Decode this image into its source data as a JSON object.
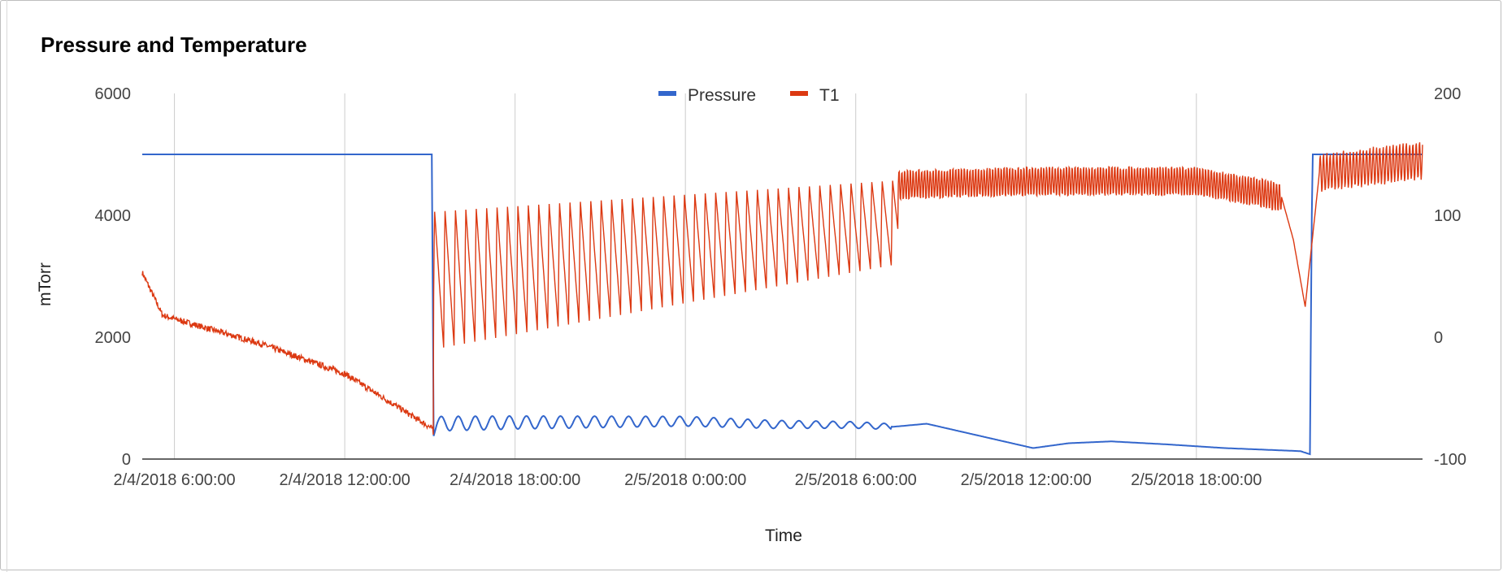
{
  "chart_data": {
    "type": "line",
    "title": "Pressure and Temperature",
    "xlabel": "Time",
    "ylabel_left": "mTorr",
    "ylabel_right": "",
    "ylim_left": [
      0,
      6000
    ],
    "ylim_right": [
      -100,
      200
    ],
    "yticks_left": [
      "0",
      "2000",
      "4000",
      "6000"
    ],
    "yticks_right": [
      "-100",
      "0",
      "100",
      "200"
    ],
    "x_range": [
      "2/4/2018 4:52:00",
      "2/6/2018 1:58:00"
    ],
    "x_ticks": [
      "2/4/2018 6:00:00",
      "2/4/2018 12:00:00",
      "2/4/2018 18:00:00",
      "2/5/2018 0:00:00",
      "2/5/2018 6:00:00",
      "2/5/2018 12:00:00",
      "2/5/2018 18:00:00"
    ],
    "grid": true,
    "legend_position": "top",
    "series": [
      {
        "name": "Pressure",
        "axis": "left",
        "color": "#3366cc",
        "x": [
          "2/4/2018 4:52:00",
          "2/4/2018 15:05:00",
          "2/4/2018 15:07:00",
          "2/4/2018 15:15:00",
          "2/4/2018 18:00:00",
          "2/5/2018 0:00:00",
          "2/5/2018 3:00:00",
          "2/5/2018 6:00:00",
          "2/5/2018 7:20:00",
          "2/5/2018 8:30:00",
          "2/5/2018 10:00:00",
          "2/5/2018 12:15:00",
          "2/5/2018 13:30:00",
          "2/5/2018 15:00:00",
          "2/5/2018 17:00:00",
          "2/5/2018 19:00:00",
          "2/5/2018 21:40:00",
          "2/5/2018 22:00:00",
          "2/5/2018 22:05:00",
          "2/6/2018 1:58:00"
        ],
        "values": [
          5000,
          5000,
          350,
          580,
          600,
          620,
          570,
          560,
          530,
          580,
          420,
          180,
          260,
          290,
          240,
          180,
          130,
          80,
          5000,
          5000
        ],
        "oscillation": [
          {
            "from": "2/4/2018 15:15:00",
            "to": "2/5/2018 7:15:00",
            "amplitude_mTorr": 120
          }
        ]
      },
      {
        "name": "T1",
        "axis": "right",
        "color": "#dc3912",
        "x": [
          "2/4/2018 4:52:00",
          "2/4/2018 5:30:00",
          "2/4/2018 5:35:00",
          "2/4/2018 6:00:00",
          "2/4/2018 9:00:00",
          "2/4/2018 12:00:00",
          "2/4/2018 15:05:00",
          "2/4/2018 15:07:00",
          "2/4/2018 18:00:00",
          "2/5/2018 0:00:00",
          "2/5/2018 6:00:00",
          "2/5/2018 7:30:00",
          "2/5/2018 12:00:00",
          "2/5/2018 18:00:00",
          "2/5/2018 21:00:00",
          "2/5/2018 21:25:00",
          "2/5/2018 21:50:00",
          "2/5/2018 22:20:00",
          "2/6/2018 1:58:00"
        ],
        "values": [
          53,
          22,
          18,
          15,
          -5,
          -30,
          -75,
          -80,
          10,
          60,
          110,
          125,
          128,
          128,
          115,
          80,
          25,
          135,
          145
        ],
        "oscillation": [
          {
            "from": "2/4/2018 15:07:00",
            "to": "2/5/2018 7:30:00",
            "envelope_low": [
              -10,
              60
            ],
            "envelope_high": [
              105,
              130
            ]
          },
          {
            "from": "2/5/2018 7:30:00",
            "to": "2/5/2018 21:00:00",
            "amplitude": 12
          },
          {
            "from": "2/5/2018 22:20:00",
            "to": "2/6/2018 1:58:00",
            "amplitude": 15
          }
        ]
      }
    ]
  }
}
